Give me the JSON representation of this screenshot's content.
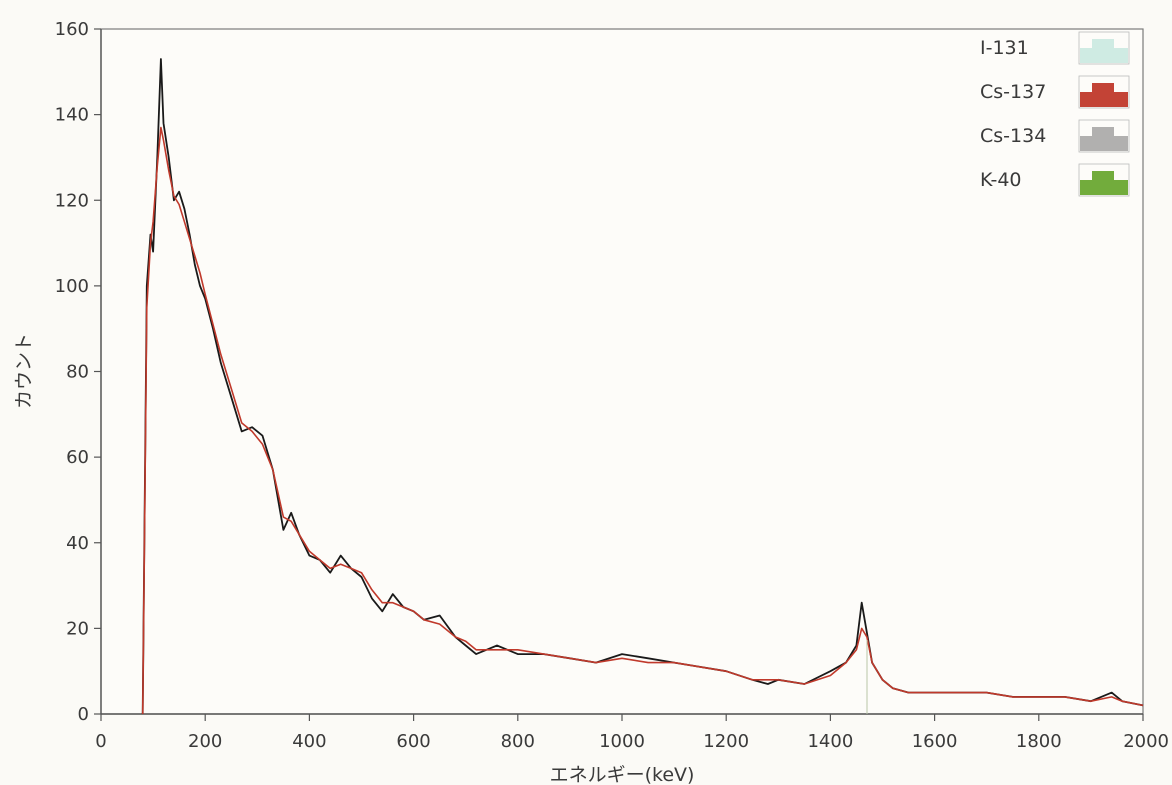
{
  "chart_data": {
    "type": "line",
    "title": "",
    "xlabel": "エネルギー(keV)",
    "ylabel": "カウント",
    "xlim": [
      0,
      2000
    ],
    "ylim": [
      0,
      160
    ],
    "x_ticks": [
      "0",
      "200",
      "400",
      "600",
      "800",
      "1000",
      "1200",
      "1400",
      "1600",
      "1800",
      "2000"
    ],
    "y_ticks": [
      "0",
      "20",
      "40",
      "60",
      "80",
      "100",
      "120",
      "140",
      "160"
    ],
    "grid": false,
    "legend_position": "top-right",
    "legend": [
      {
        "label": "I-131",
        "color": "#a9dcd2"
      },
      {
        "label": "Cs-137",
        "color": "#c0392b"
      },
      {
        "label": "Cs-134",
        "color": "#555555"
      },
      {
        "label": "K-40",
        "color": "#6aa832"
      }
    ],
    "series": [
      {
        "style": "measured",
        "color": "#1a1a1a",
        "x": [
          80,
          88,
          95,
          100,
          108,
          115,
          120,
          130,
          140,
          150,
          160,
          170,
          180,
          190,
          200,
          215,
          230,
          250,
          270,
          290,
          310,
          330,
          350,
          365,
          380,
          400,
          420,
          440,
          460,
          480,
          500,
          520,
          540,
          560,
          580,
          600,
          620,
          650,
          680,
          700,
          720,
          740,
          760,
          800,
          850,
          900,
          950,
          1000,
          1050,
          1100,
          1150,
          1200,
          1250,
          1280,
          1300,
          1350,
          1400,
          1430,
          1450,
          1460,
          1470,
          1480,
          1500,
          1520,
          1550,
          1600,
          1650,
          1700,
          1750,
          1800,
          1850,
          1900,
          1940,
          1960,
          2000
        ],
        "y": [
          0,
          100,
          112,
          108,
          130,
          153,
          138,
          130,
          120,
          122,
          118,
          112,
          105,
          100,
          97,
          90,
          82,
          74,
          66,
          67,
          65,
          57,
          43,
          47,
          42,
          37,
          36,
          33,
          37,
          34,
          32,
          27,
          24,
          28,
          25,
          24,
          22,
          23,
          18,
          16,
          14,
          15,
          16,
          14,
          14,
          13,
          12,
          14,
          13,
          12,
          11,
          10,
          8,
          7,
          8,
          7,
          10,
          12,
          16,
          26,
          19,
          12,
          8,
          6,
          5,
          5,
          5,
          5,
          4,
          4,
          4,
          3,
          5,
          3,
          2
        ]
      },
      {
        "style": "fit",
        "color": "#c0392b",
        "x": [
          80,
          88,
          95,
          100,
          108,
          115,
          120,
          130,
          140,
          150,
          160,
          170,
          180,
          190,
          200,
          215,
          230,
          250,
          270,
          290,
          310,
          330,
          350,
          365,
          380,
          400,
          420,
          440,
          460,
          480,
          500,
          520,
          540,
          560,
          580,
          600,
          620,
          650,
          680,
          700,
          720,
          740,
          760,
          800,
          850,
          900,
          950,
          1000,
          1050,
          1100,
          1150,
          1200,
          1250,
          1280,
          1300,
          1350,
          1400,
          1430,
          1450,
          1460,
          1470,
          1480,
          1500,
          1520,
          1550,
          1600,
          1650,
          1700,
          1750,
          1800,
          1850,
          1900,
          1940,
          1960,
          2000
        ],
        "y": [
          0,
          95,
          110,
          115,
          128,
          137,
          134,
          127,
          121,
          119,
          115,
          111,
          107,
          103,
          98,
          91,
          84,
          76,
          68,
          66,
          63,
          57,
          46,
          45,
          42,
          38,
          36,
          34,
          35,
          34,
          33,
          29,
          26,
          26,
          25,
          24,
          22,
          21,
          18,
          17,
          15,
          15,
          15,
          15,
          14,
          13,
          12,
          13,
          12,
          12,
          11,
          10,
          8,
          8,
          8,
          7,
          9,
          12,
          15,
          20,
          18,
          12,
          8,
          6,
          5,
          5,
          5,
          5,
          4,
          4,
          4,
          3,
          4,
          3,
          2
        ]
      }
    ]
  }
}
